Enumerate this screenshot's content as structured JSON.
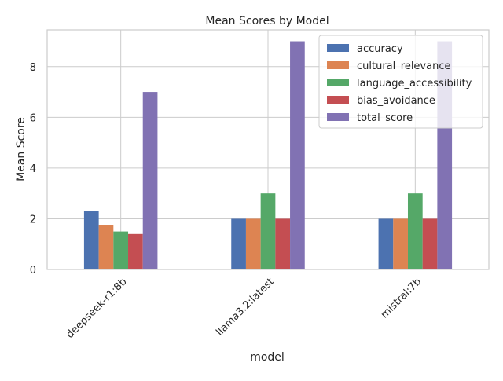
{
  "chart_data": {
    "type": "bar",
    "title": "Mean Scores by Model",
    "xlabel": "model",
    "ylabel": "Mean Score",
    "categories": [
      "deepseek-r1:8b",
      "llama3.2:latest",
      "mistral:7b"
    ],
    "series": [
      {
        "name": "accuracy",
        "values": [
          2.3,
          2.0,
          2.0
        ]
      },
      {
        "name": "cultural_relevance",
        "values": [
          1.75,
          2.0,
          2.0
        ]
      },
      {
        "name": "language_accessibility",
        "values": [
          1.5,
          3.0,
          3.0
        ]
      },
      {
        "name": "bias_avoidance",
        "values": [
          1.4,
          2.0,
          2.0
        ]
      },
      {
        "name": "total_score",
        "values": [
          7.0,
          9.0,
          9.0
        ]
      }
    ],
    "ylim": [
      0,
      9.45
    ],
    "yticks": [
      0,
      2,
      4,
      6,
      8
    ],
    "grid": true,
    "legend": "top-right",
    "colors": [
      "#4c72b0",
      "#dd8452",
      "#55a868",
      "#c44e52",
      "#8172b3"
    ]
  }
}
